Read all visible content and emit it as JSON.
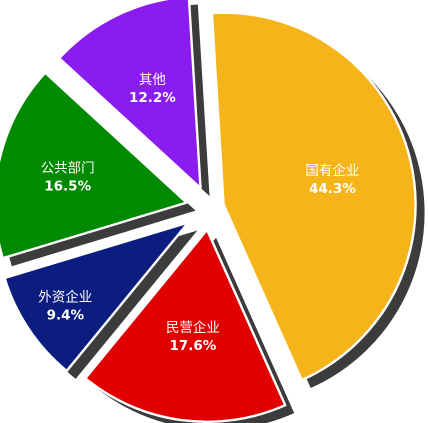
{
  "chart_data": {
    "type": "pie",
    "slices": [
      {
        "label": "国有企业",
        "value": 44.3,
        "value_label": "44.3%",
        "color": "#f5b419"
      },
      {
        "label": "民营企业",
        "value": 17.6,
        "value_label": "17.6%",
        "color": "#e00000"
      },
      {
        "label": "外资企业",
        "value": 9.4,
        "value_label": "9.4%",
        "color": "#0b1e80"
      },
      {
        "label": "公共部门",
        "value": 16.5,
        "value_label": "16.5%",
        "color": "#008a00"
      },
      {
        "label": "其他",
        "value": 12.2,
        "value_label": "12.2%",
        "color": "#8a1cf0"
      }
    ],
    "exploded": true,
    "drop_shadow": true
  }
}
